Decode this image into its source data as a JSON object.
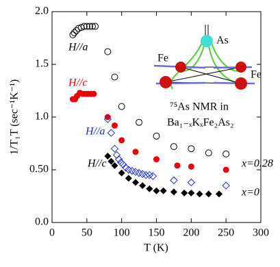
{
  "chart_data": {
    "type": "scatter",
    "ylabel": "1/T₁T (sec⁻¹K⁻¹)",
    "xlabel": "T (K)",
    "xlim": [
      0,
      300
    ],
    "xticks": [
      0,
      50,
      100,
      150,
      200,
      250,
      300
    ],
    "ylim": [
      0,
      2
    ],
    "yticks": [
      {
        "value": 0,
        "label": "0.0"
      },
      {
        "value": 0.5,
        "label": "0.50"
      },
      {
        "value": 1,
        "label": "1.0"
      },
      1.5,
      {
        "value": 2,
        "label": "2.0"
      }
    ],
    "series": [
      {
        "color": "#000000",
        "marker": "circle-open",
        "x": [
          30,
          32,
          35,
          38,
          42,
          46,
          50,
          54,
          58,
          62,
          80,
          90,
          100,
          125,
          150,
          175,
          200,
          225,
          250
        ],
        "values": [
          1.78,
          1.8,
          1.82,
          1.84,
          1.85,
          1.86,
          1.86,
          1.86,
          1.86,
          1.86,
          1.62,
          1.38,
          1.1,
          0.95,
          0.82,
          0.72,
          0.7,
          0.66,
          0.65
        ]
      },
      {
        "color": "#e8000b",
        "marker": "circle",
        "x": [
          30,
          33,
          36,
          40,
          44,
          48,
          52,
          56,
          60,
          80,
          90,
          100,
          120,
          150,
          180,
          200,
          250
        ],
        "values": [
          1.17,
          1.17,
          1.2,
          1.23,
          1.22,
          1.22,
          1.22,
          1.22,
          1.22,
          1.0,
          0.92,
          0.78,
          0.67,
          0.6,
          0.54,
          0.53,
          0.5
        ]
      },
      {
        "color": "#2030d0",
        "marker": "diamond-open",
        "x": [
          80,
          85,
          90,
          93,
          96,
          99,
          102,
          106,
          110,
          115,
          120,
          125,
          130,
          135,
          140,
          145,
          175,
          200,
          250
        ],
        "values": [
          0.98,
          0.85,
          0.7,
          0.64,
          0.6,
          0.57,
          0.55,
          0.52,
          0.5,
          0.49,
          0.48,
          0.47,
          0.46,
          0.45,
          0.45,
          0.44,
          0.4,
          0.38,
          0.35
        ]
      },
      {
        "color": "#000000",
        "marker": "diamond",
        "x": [
          80,
          85,
          90,
          100,
          110,
          120,
          130,
          140,
          150,
          160,
          175,
          190,
          200,
          212,
          225,
          240
        ],
        "values": [
          0.63,
          0.58,
          0.54,
          0.47,
          0.42,
          0.38,
          0.35,
          0.32,
          0.3,
          0.3,
          0.29,
          0.28,
          0.28,
          0.27,
          0.27,
          0.27
        ]
      }
    ],
    "annotations": [
      {
        "text": "H//a",
        "color": "#000000"
      },
      {
        "text": "H//c",
        "color": "#e8000b"
      },
      {
        "text": "H//a",
        "color": "#2030d0"
      },
      {
        "text": "H//c",
        "color": "#000000"
      },
      {
        "text": "x=0.28",
        "color": "#000000"
      },
      {
        "text": "x=0",
        "color": "#000000"
      }
    ],
    "inset": {
      "title": "⁷⁵As NMR in",
      "compound": "Ba₁₋ₓKₓFe₂As₂",
      "atoms": [
        "As",
        "Fe",
        "Fe"
      ]
    }
  }
}
